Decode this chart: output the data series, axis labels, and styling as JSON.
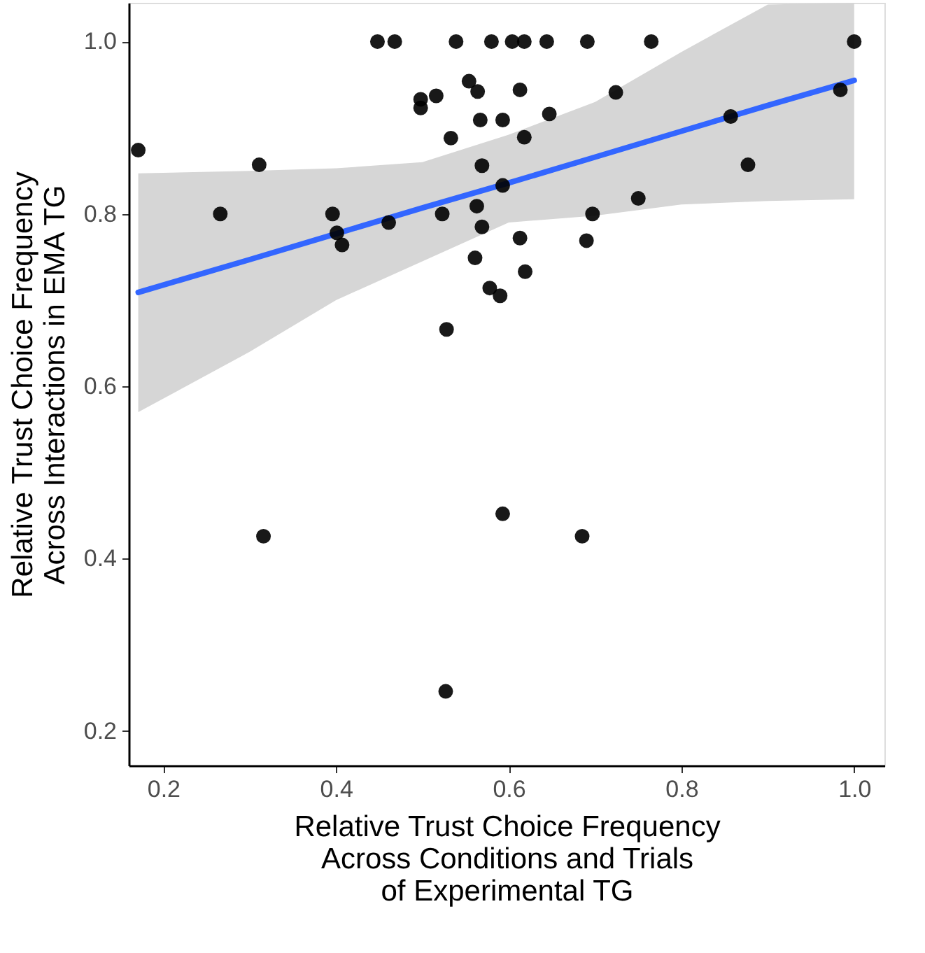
{
  "chart_data": {
    "type": "scatter",
    "xlabel": "Relative Trust Choice Frequency\nAcross Conditions and Trials\nof Experimental TG",
    "ylabel": "Relative Trust Choice Frequency\nAcross Interactions in EMA TG",
    "xlim": [
      0.16,
      1.035
    ],
    "ylim": [
      0.16,
      1.045
    ],
    "xticks": [
      {
        "value": 0.2,
        "label": "0.2"
      },
      {
        "value": 0.4,
        "label": "0.4"
      },
      {
        "value": 0.6,
        "label": "0.6"
      },
      {
        "value": 0.8,
        "label": "0.8"
      },
      {
        "value": 1.0,
        "label": "1.0"
      }
    ],
    "yticks": [
      {
        "value": 0.2,
        "label": "0.2"
      },
      {
        "value": 0.4,
        "label": "0.4"
      },
      {
        "value": 0.6,
        "label": "0.6"
      },
      {
        "value": 0.8,
        "label": "0.8"
      },
      {
        "value": 1.0,
        "label": "1.0"
      }
    ],
    "grid": false,
    "series": [
      {
        "type": "line",
        "color": "#3366ff",
        "x": [
          0.171,
          0.3,
          0.4,
          0.5,
          0.6,
          0.7,
          0.8,
          0.9,
          1.0
        ],
        "values": [
          0.709,
          0.747,
          0.777,
          0.807,
          0.836,
          0.866,
          0.896,
          0.926,
          0.955
        ],
        "lower": [
          0.57,
          0.64,
          0.7,
          0.745,
          0.79,
          0.798,
          0.811,
          0.815,
          0.817
        ],
        "upper": [
          0.847,
          0.85,
          0.853,
          0.86,
          0.892,
          0.93,
          0.988,
          1.043,
          1.045
        ]
      },
      {
        "color": "#000000",
        "marker": "circle",
        "x": [
          0.171,
          0.311,
          0.266,
          0.448,
          0.468,
          0.539,
          0.58,
          0.554,
          0.564,
          0.498,
          0.498,
          0.516,
          0.567,
          0.533,
          0.569,
          0.396,
          0.401,
          0.407,
          0.461,
          0.523,
          0.563,
          0.569,
          0.561,
          0.578,
          0.59,
          0.528,
          0.604,
          0.618,
          0.644,
          0.691,
          0.765,
          1.0,
          0.613,
          0.724,
          0.593,
          0.647,
          0.618,
          0.857,
          0.984,
          0.877,
          0.593,
          0.75,
          0.697,
          0.613,
          0.69,
          0.619,
          0.316,
          0.593,
          0.685,
          0.527
        ],
        "values": [
          0.874,
          0.857,
          0.8,
          1.0,
          1.0,
          1.0,
          1.0,
          0.954,
          0.942,
          0.933,
          0.923,
          0.937,
          0.909,
          0.888,
          0.856,
          0.8,
          0.778,
          0.764,
          0.79,
          0.8,
          0.809,
          0.785,
          0.749,
          0.714,
          0.705,
          0.666,
          1.0,
          1.0,
          1.0,
          1.0,
          1.0,
          1.0,
          0.944,
          0.941,
          0.909,
          0.916,
          0.889,
          0.913,
          0.944,
          0.857,
          0.833,
          0.818,
          0.8,
          0.772,
          0.769,
          0.733,
          0.426,
          0.452,
          0.426,
          0.246
        ]
      }
    ]
  }
}
